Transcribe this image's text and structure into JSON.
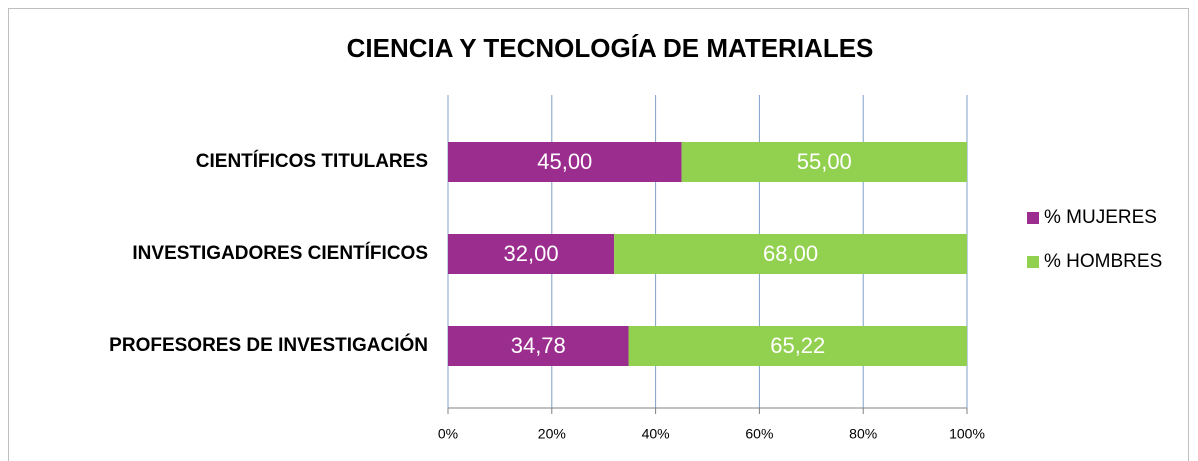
{
  "chart_data": {
    "type": "bar",
    "orientation": "horizontal",
    "stacked": true,
    "title": "CIENCIA Y TECNOLOGÍA DE MATERIALES",
    "categories": [
      "CIENTÍFICOS TITULARES",
      "INVESTIGADORES CIENTÍFICOS",
      "PROFESORES DE INVESTIGACIÓN"
    ],
    "series": [
      {
        "name": "% MUJERES",
        "color": "#9b2d8e",
        "values": [
          45,
          32,
          34.78
        ],
        "value_labels": [
          "45,00",
          "32,00",
          "34,78"
        ]
      },
      {
        "name": "% HOMBRES",
        "color": "#92d050",
        "values": [
          55,
          68,
          65.22
        ],
        "value_labels": [
          "55,00",
          "68,00",
          "65,22"
        ]
      }
    ],
    "xlim": [
      0,
      100
    ],
    "xticks": [
      {
        "value": 0,
        "label": "0%"
      },
      {
        "value": 20,
        "label": "20%"
      },
      {
        "value": 40,
        "label": "40%"
      },
      {
        "value": 60,
        "label": "60%"
      },
      {
        "value": 80,
        "label": "80%"
      },
      {
        "value": 100,
        "label": "100%"
      }
    ],
    "grid": true,
    "legend": "right"
  }
}
